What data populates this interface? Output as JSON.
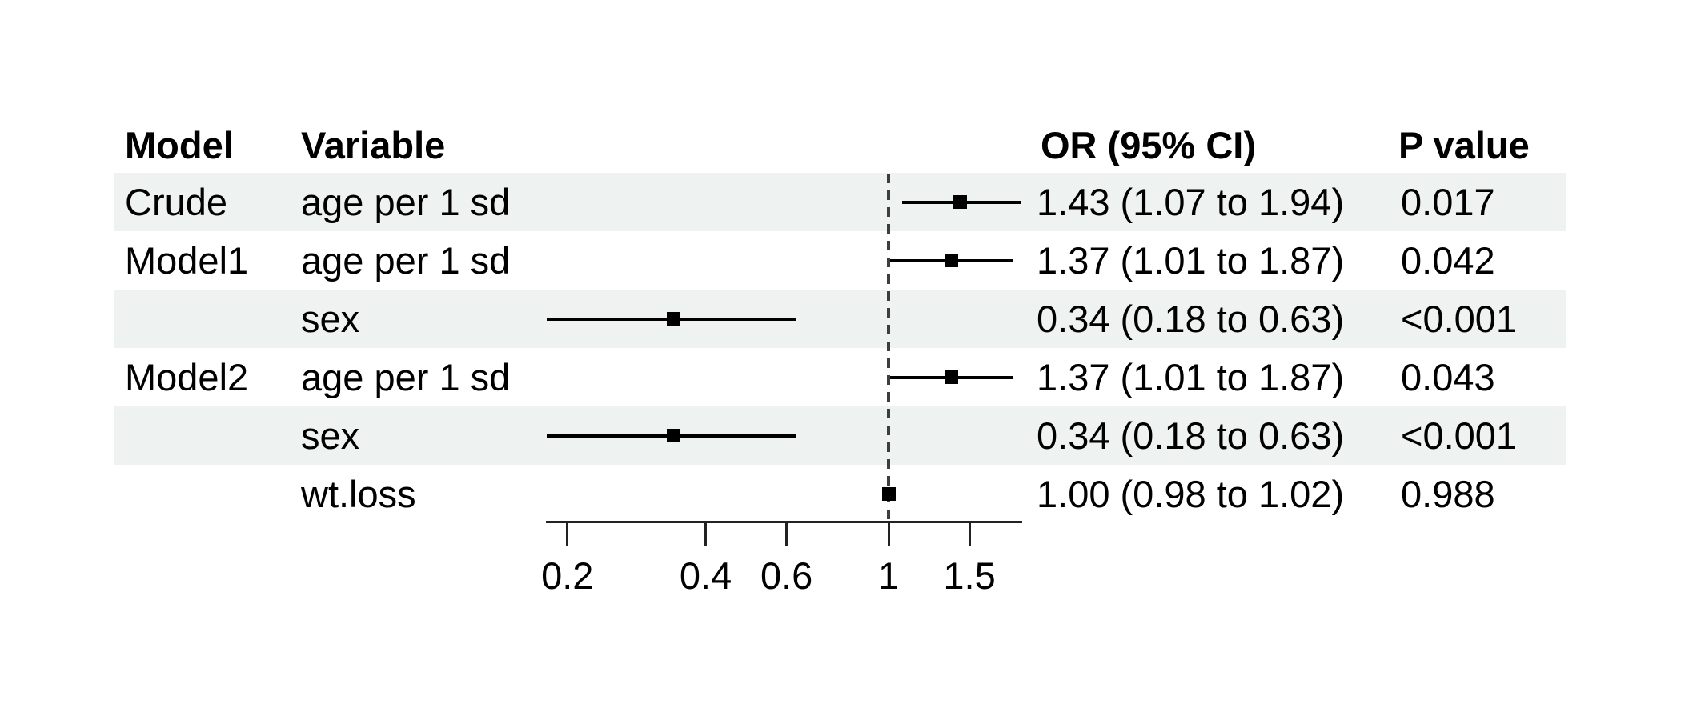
{
  "chart_data": {
    "type": "scatter",
    "subtype": "forest-plot",
    "title": "",
    "xscale": "log",
    "xlim": [
      0.179,
      1.95
    ],
    "x_ticks": [
      0.2,
      0.4,
      0.6,
      1,
      1.5
    ],
    "x_tick_labels": [
      "0.2",
      "0.4",
      "0.6",
      "1",
      "1.5"
    ],
    "reference_line": 1,
    "grid": false,
    "columns": {
      "model": "Model",
      "variable": "Variable",
      "or_ci": "OR (95% CI)",
      "p": "P value"
    },
    "rows": [
      {
        "model": "Crude",
        "variable": "age per 1 sd",
        "or_ci": "1.43 (1.07 to 1.94)",
        "p": "0.017",
        "est": 1.43,
        "lo": 1.07,
        "hi": 1.94,
        "shaded": true
      },
      {
        "model": "Model1",
        "variable": "age per 1 sd",
        "or_ci": "1.37 (1.01 to 1.87)",
        "p": "0.042",
        "est": 1.37,
        "lo": 1.01,
        "hi": 1.87,
        "shaded": false
      },
      {
        "model": "",
        "variable": "sex",
        "or_ci": "0.34 (0.18 to 0.63)",
        "p": "<0.001",
        "est": 0.34,
        "lo": 0.18,
        "hi": 0.63,
        "shaded": true
      },
      {
        "model": "Model2",
        "variable": "age per 1 sd",
        "or_ci": "1.37 (1.01 to 1.87)",
        "p": "0.043",
        "est": 1.37,
        "lo": 1.01,
        "hi": 1.87,
        "shaded": false
      },
      {
        "model": "",
        "variable": "sex",
        "or_ci": "0.34 (0.18 to 0.63)",
        "p": "<0.001",
        "est": 0.34,
        "lo": 0.18,
        "hi": 0.63,
        "shaded": true
      },
      {
        "model": "",
        "variable": "wt.loss",
        "or_ci": "1.00 (0.98 to 1.02)",
        "p": "0.988",
        "est": 1.0,
        "lo": 0.98,
        "hi": 1.02,
        "shaded": false
      }
    ],
    "legend": null
  },
  "colors": {
    "stripe": "#eef2f1",
    "text": "#000000",
    "axis": "#222222",
    "reference_line": "#3d3d3d",
    "marker": "#000000",
    "ci_line": "#000000",
    "background": "#ffffff"
  }
}
